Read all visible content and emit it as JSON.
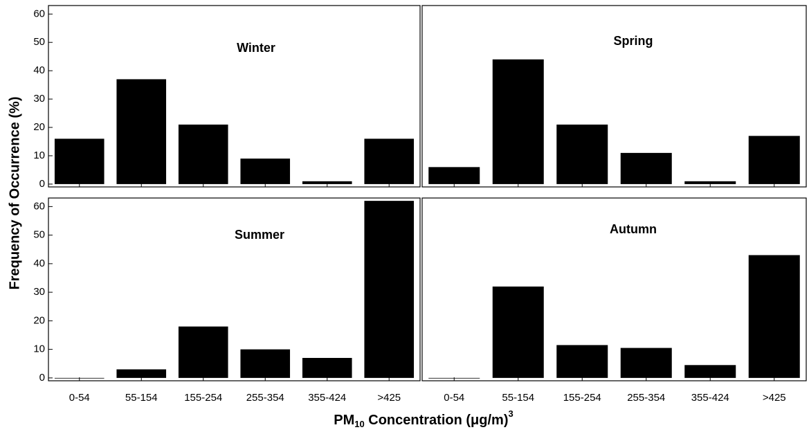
{
  "chart_data": [
    {
      "type": "bar",
      "title": "Winter",
      "categories": [
        null,
        null,
        null,
        null,
        null,
        null
      ],
      "values": [
        16,
        37,
        21,
        9,
        1,
        16
      ],
      "color": "#000000",
      "ylim": [
        -1,
        63
      ],
      "yticks": [
        0,
        10,
        20,
        30,
        40,
        50,
        60
      ]
    },
    {
      "type": "bar",
      "title": "Spring",
      "categories": [
        null,
        null,
        null,
        null,
        null,
        null
      ],
      "values": [
        6,
        44,
        21,
        11,
        1,
        17
      ],
      "color": "#000000",
      "ylim": [
        -1,
        63
      ]
    },
    {
      "type": "bar",
      "title": "Summer",
      "categories": [
        "0-54",
        "55-154",
        "155-254",
        "255-354",
        "355-424",
        ">425"
      ],
      "values": [
        0,
        3,
        18,
        10,
        7,
        62
      ],
      "color": "#000000",
      "ylim": [
        -1,
        63
      ],
      "yticks": [
        0,
        10,
        20,
        30,
        40,
        50,
        60
      ]
    },
    {
      "type": "bar",
      "title": "Autumn",
      "categories": [
        "0-54",
        "55-154",
        "155-254",
        "255-354",
        "355-424",
        ">425"
      ],
      "values": [
        0,
        32,
        11.5,
        10.5,
        4.5,
        43
      ],
      "color": "#000000",
      "ylim": [
        -1,
        63
      ]
    }
  ],
  "y_label": "Frequency of Occurrence (%)",
  "x_label": {
    "main": "PM",
    "sub": "10",
    "rest": " Concentration (μg/m)",
    "sup": "3"
  }
}
